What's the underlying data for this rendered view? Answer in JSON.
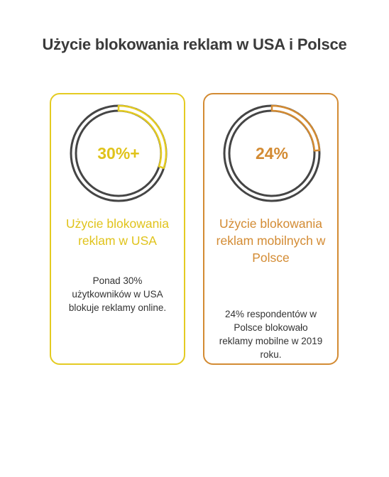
{
  "title": "Użycie blokowania reklam w USA i Polsce",
  "colors": {
    "title": "#3a3a3a",
    "usa_accent": "#e4cb22",
    "poland_accent": "#d38b33",
    "ring_track": "#454545"
  },
  "cards": [
    {
      "value_label": "30%+",
      "progress_percent": 30,
      "heading": "Użycie blokowania reklam w USA",
      "description": "Ponad 30% użytkowników w USA blokuje reklamy online."
    },
    {
      "value_label": "24%",
      "progress_percent": 24,
      "heading": "Użycie blokowania reklam mobilnych w Polsce",
      "description": "24% respondentów w Polsce blokowało reklamy mobilne w 2019 roku."
    }
  ]
}
